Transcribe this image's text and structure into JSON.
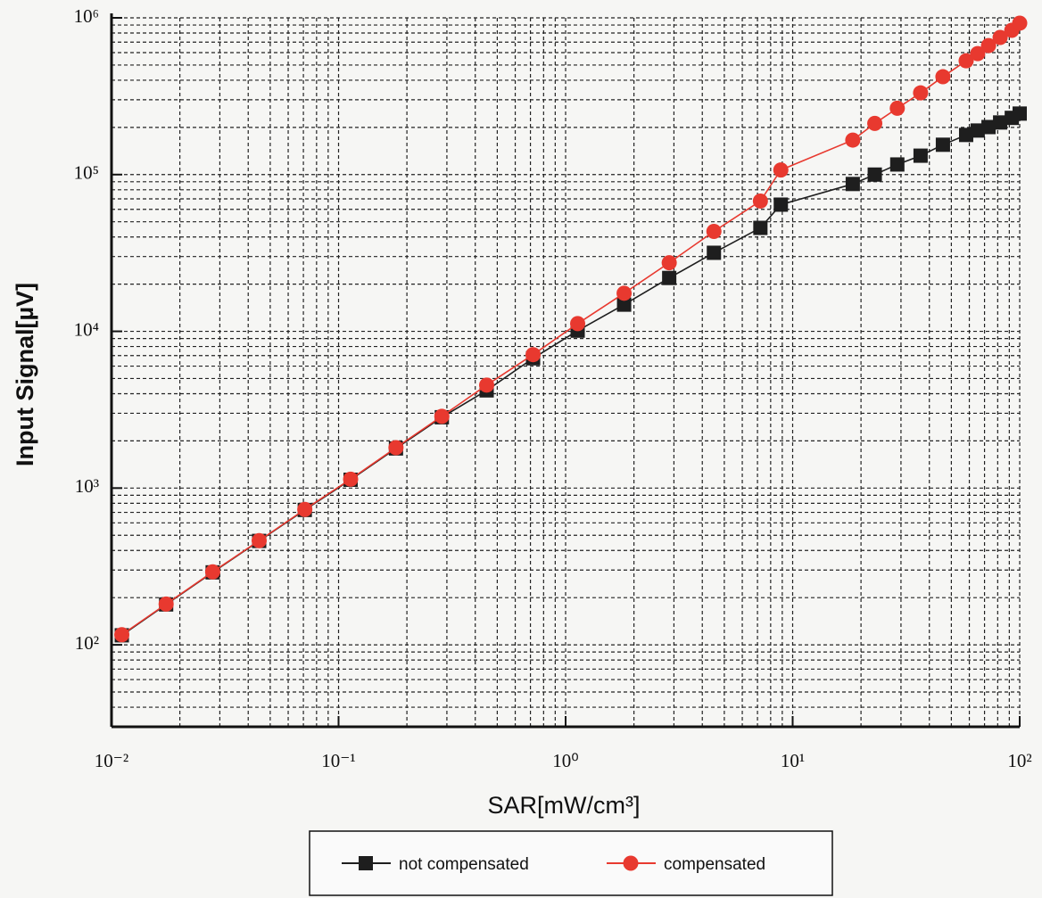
{
  "chart_data": {
    "type": "line",
    "xlabel": "SAR[mW/cm³]",
    "ylabel": "Input Signal[µV]",
    "xscale": "log",
    "yscale": "log",
    "grid": true,
    "legend": "bottom",
    "xlim": [
      0.01,
      100
    ],
    "ylim": [
      30,
      1000000
    ],
    "xticks": [
      {
        "value": 0.01,
        "label": "10⁻²"
      },
      {
        "value": 0.1,
        "label": "10⁻¹"
      },
      {
        "value": 1,
        "label": "10⁰"
      },
      {
        "value": 10,
        "label": "10¹"
      },
      {
        "value": 100,
        "label": "10²"
      }
    ],
    "yticks": [
      {
        "value": 100,
        "label": "10²"
      },
      {
        "value": 1000,
        "label": "10³"
      },
      {
        "value": 10000,
        "label": "10⁴"
      },
      {
        "value": 100000,
        "label": "10⁵"
      },
      {
        "value": 1000000,
        "label": "10⁶"
      }
    ],
    "x": [
      0.0111,
      0.0174,
      0.0279,
      0.0447,
      0.071,
      0.113,
      0.179,
      0.285,
      0.449,
      0.719,
      1.13,
      1.81,
      2.86,
      4.5,
      7.21,
      8.87,
      18.4,
      23,
      28.9,
      36.6,
      45.9,
      58.1,
      65.3,
      72.9,
      82,
      92.3,
      100
    ],
    "series": [
      {
        "name": "not compensated",
        "color": "#1e1e1e",
        "marker": "square",
        "values": [
          115,
          181,
          290,
          460,
          725,
          1130,
          1790,
          2830,
          4200,
          6730,
          10100,
          14800,
          21900,
          31700,
          45700,
          64300,
          87100,
          100000,
          116000,
          132000,
          155000,
          179000,
          191000,
          201000,
          215000,
          230000,
          245000
        ]
      },
      {
        "name": "compensated",
        "color": "#e8392f",
        "marker": "circle",
        "values": [
          116,
          182,
          292,
          462,
          731,
          1140,
          1810,
          2870,
          4540,
          7100,
          11200,
          17500,
          27400,
          43400,
          67800,
          107000,
          166000,
          212000,
          265000,
          332000,
          421000,
          532000,
          591000,
          665000,
          750000,
          832000,
          925000
        ]
      }
    ]
  }
}
